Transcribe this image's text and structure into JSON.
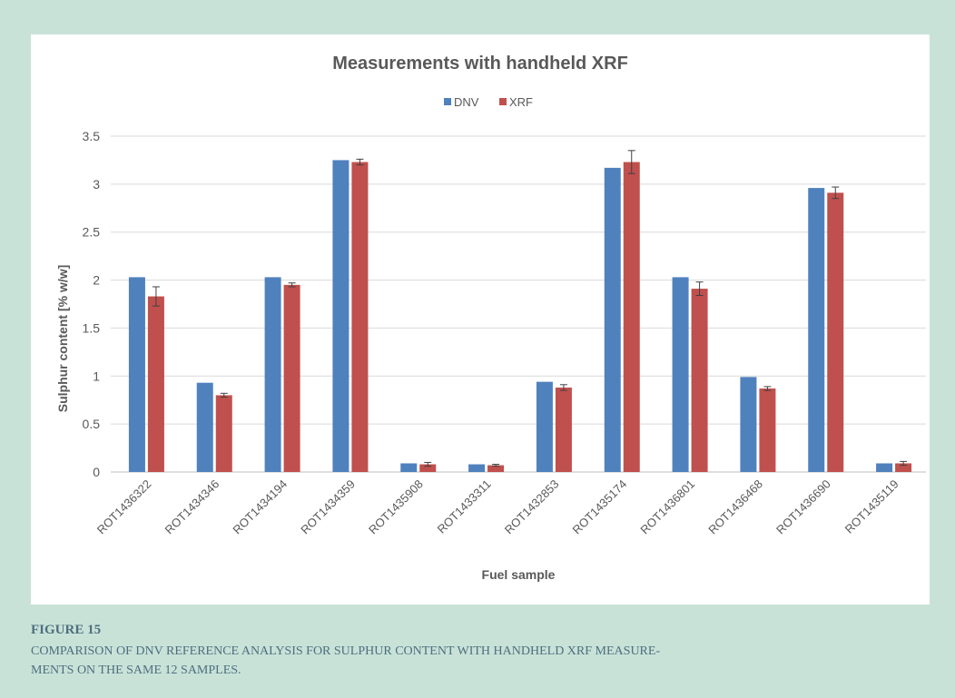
{
  "chart_data": {
    "type": "bar",
    "title": "Measurements with handheld XRF",
    "xlabel": "Fuel sample",
    "ylabel": "Sulphur content [% w/w]",
    "ylim": [
      0,
      3.5
    ],
    "yticks": [
      "0",
      "0.5",
      "1",
      "1.5",
      "2",
      "2.5",
      "3",
      "3.5"
    ],
    "grid": true,
    "legend_position": "top",
    "categories": [
      "ROT1436322",
      "ROT1434346",
      "ROT1434194",
      "ROT1434359",
      "ROT1435908",
      "ROT1433311",
      "ROT1432853",
      "ROT1435174",
      "ROT1436801",
      "ROT1436468",
      "ROT1436690",
      "ROT1435119"
    ],
    "series": [
      {
        "name": "DNV",
        "color": "#4f81bd",
        "values": [
          2.03,
          0.93,
          2.03,
          3.25,
          0.09,
          0.08,
          0.94,
          3.17,
          2.03,
          0.99,
          2.96,
          0.09
        ],
        "errors": [
          0,
          0,
          0,
          0,
          0,
          0,
          0,
          0,
          0,
          0,
          0,
          0
        ]
      },
      {
        "name": "XRF",
        "color": "#c0504d",
        "values": [
          1.83,
          0.8,
          1.95,
          3.23,
          0.08,
          0.07,
          0.88,
          3.23,
          1.91,
          0.87,
          2.91,
          0.09
        ],
        "errors": [
          0.1,
          0.02,
          0.02,
          0.03,
          0.02,
          0.01,
          0.03,
          0.12,
          0.07,
          0.02,
          0.06,
          0.02
        ]
      }
    ]
  },
  "caption": {
    "label": "FIGURE 15",
    "line1": "COMPARISON OF DNV REFERENCE ANALYSIS FOR SULPHUR CONTENT WITH HANDHELD XRF MEASURE-",
    "line2": "MENTS ON THE SAME 12 SAMPLES."
  }
}
